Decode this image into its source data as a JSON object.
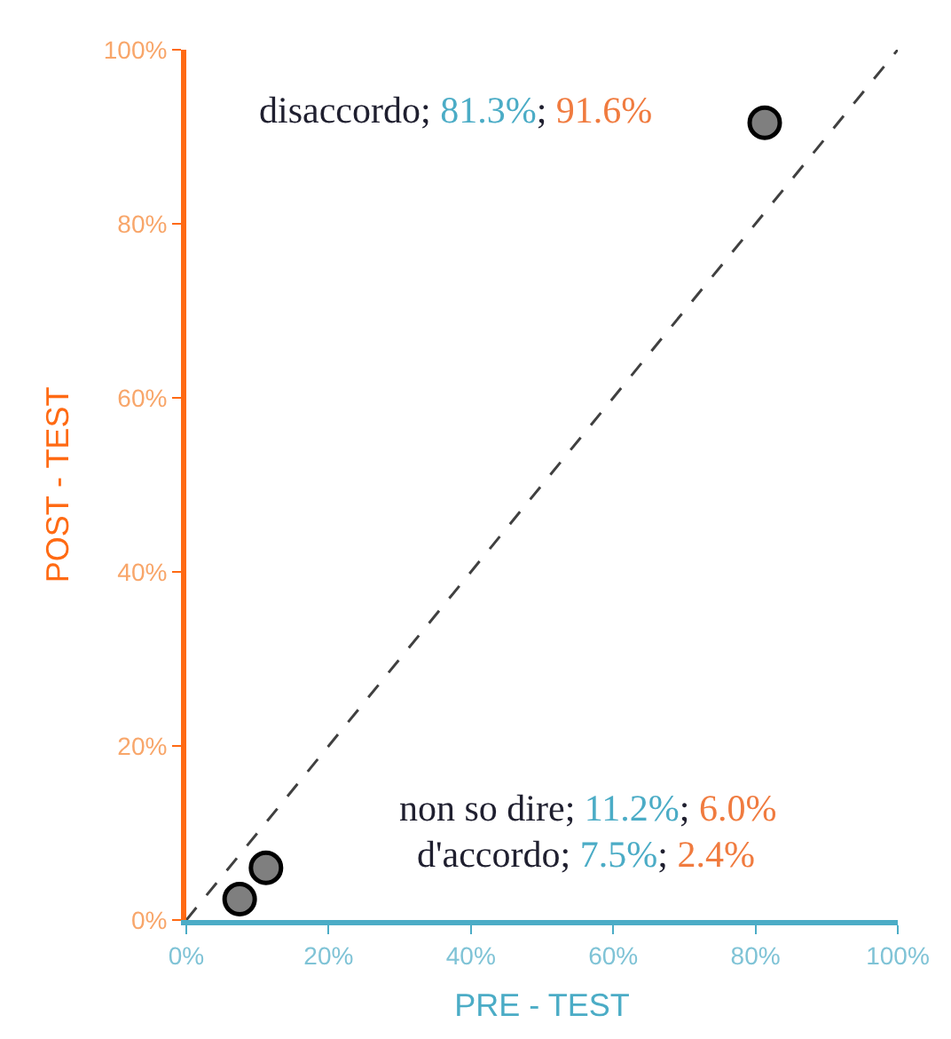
{
  "chart_data": {
    "type": "scatter",
    "xlabel": "PRE - TEST",
    "ylabel": "POST - TEST",
    "xlim": [
      0,
      100
    ],
    "ylim": [
      0,
      100
    ],
    "xticks": [
      {
        "value": 0,
        "label": "0%"
      },
      {
        "value": 20,
        "label": "20%"
      },
      {
        "value": 40,
        "label": "40%"
      },
      {
        "value": 60,
        "label": "60%"
      },
      {
        "value": 80,
        "label": "80%"
      },
      {
        "value": 100,
        "label": "100%"
      }
    ],
    "yticks": [
      {
        "value": 0,
        "label": "0%"
      },
      {
        "value": 20,
        "label": "20%"
      },
      {
        "value": 40,
        "label": "40%"
      },
      {
        "value": 60,
        "label": "60%"
      },
      {
        "value": 80,
        "label": "80%"
      },
      {
        "value": 100,
        "label": "100%"
      }
    ],
    "series": [
      {
        "color": "#7f7f7f",
        "x": [
          81.3,
          11.2,
          7.5
        ],
        "values": [
          91.6,
          6.0,
          2.4
        ],
        "marker": "circle"
      },
      {
        "type": "line",
        "color": "#404040",
        "x": [
          0,
          100
        ],
        "values": [
          0,
          100
        ],
        "line_style": "dashed",
        "marker": "none"
      }
    ],
    "annotations": [
      "disaccordo; 81.3%; 91.6%",
      "non so dire; 11.2%; 6.0%",
      "d'accordo; 7.5%; 2.4%"
    ]
  }
}
